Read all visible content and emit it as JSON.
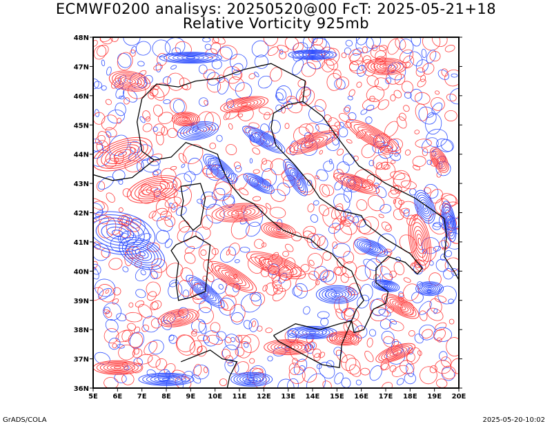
{
  "title": {
    "line1": "ECMWF0200 analisys: 20250520@00 FcT: 2025-05-21+18",
    "line2": "Relative Vorticity 925mb"
  },
  "map": {
    "lat_labels": [
      "48N",
      "47N",
      "46N",
      "45N",
      "44N",
      "43N",
      "42N",
      "41N",
      "40N",
      "39N",
      "38N",
      "37N",
      "36N"
    ],
    "lon_labels": [
      "5E",
      "6E",
      "7E",
      "8E",
      "9E",
      "10E",
      "11E",
      "12E",
      "13E",
      "14E",
      "15E",
      "16E",
      "17E",
      "18E",
      "19E",
      "20E"
    ],
    "lat_range": [
      36,
      48
    ],
    "lon_range": [
      5,
      20
    ],
    "colors": {
      "positive_vorticity": "#ff3c3c",
      "negative_vorticity": "#3050ff",
      "coastline": "#000000",
      "frame": "#000000"
    }
  },
  "footer": {
    "left": "GrADS/COLA",
    "right": "2025-05-20-10:02"
  }
}
